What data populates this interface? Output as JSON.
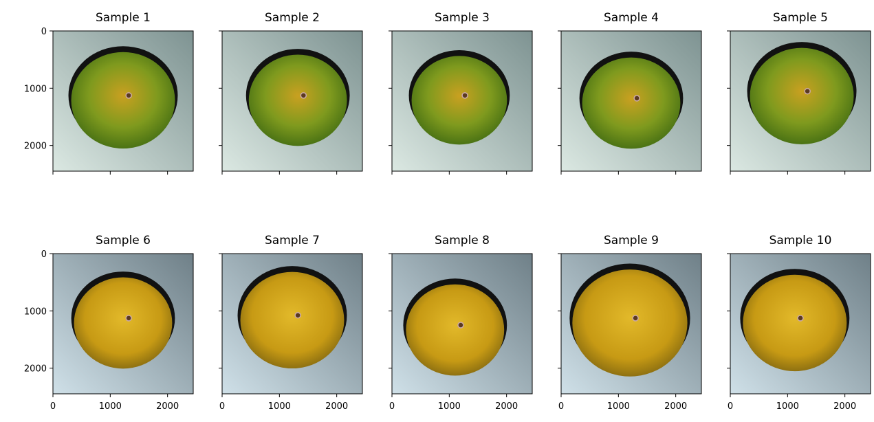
{
  "chart_data": [
    {
      "type": "image",
      "title": "Sample 1",
      "xlim": [
        0,
        2448
      ],
      "ylim": [
        2448,
        0
      ],
      "xticks": [
        0,
        1000,
        2000
      ],
      "yticks": [
        0,
        1000,
        2000
      ]
    },
    {
      "type": "image",
      "title": "Sample 2",
      "xlim": [
        0,
        2448
      ],
      "ylim": [
        2448,
        0
      ],
      "xticks": [
        0,
        1000,
        2000
      ],
      "yticks": [
        0,
        1000,
        2000
      ]
    },
    {
      "type": "image",
      "title": "Sample 3",
      "xlim": [
        0,
        2448
      ],
      "ylim": [
        2448,
        0
      ],
      "xticks": [
        0,
        1000,
        2000
      ],
      "yticks": [
        0,
        1000,
        2000
      ]
    },
    {
      "type": "image",
      "title": "Sample 4",
      "xlim": [
        0,
        2448
      ],
      "ylim": [
        2448,
        0
      ],
      "xticks": [
        0,
        1000,
        2000
      ],
      "yticks": [
        0,
        1000,
        2000
      ]
    },
    {
      "type": "image",
      "title": "Sample 5",
      "xlim": [
        0,
        2448
      ],
      "ylim": [
        2448,
        0
      ],
      "xticks": [
        0,
        1000,
        2000
      ],
      "yticks": [
        0,
        1000,
        2000
      ]
    },
    {
      "type": "image",
      "title": "Sample 6",
      "xlim": [
        0,
        2448
      ],
      "ylim": [
        2448,
        0
      ],
      "xticks": [
        0,
        1000,
        2000
      ],
      "yticks": [
        0,
        1000,
        2000
      ]
    },
    {
      "type": "image",
      "title": "Sample 7",
      "xlim": [
        0,
        2448
      ],
      "ylim": [
        2448,
        0
      ],
      "xticks": [
        0,
        1000,
        2000
      ],
      "yticks": [
        0,
        1000,
        2000
      ]
    },
    {
      "type": "image",
      "title": "Sample 8",
      "xlim": [
        0,
        2448
      ],
      "ylim": [
        2448,
        0
      ],
      "xticks": [
        0,
        1000,
        2000
      ],
      "yticks": [
        0,
        1000,
        2000
      ]
    },
    {
      "type": "image",
      "title": "Sample 9",
      "xlim": [
        0,
        2448
      ],
      "ylim": [
        2448,
        0
      ],
      "xticks": [
        0,
        1000,
        2000
      ],
      "yticks": [
        0,
        1000,
        2000
      ]
    },
    {
      "type": "image",
      "title": "Sample 10",
      "xlim": [
        0,
        2448
      ],
      "ylim": [
        2448,
        0
      ],
      "xticks": [
        0,
        1000,
        2000
      ],
      "yticks": [
        0,
        1000,
        2000
      ]
    }
  ]
}
